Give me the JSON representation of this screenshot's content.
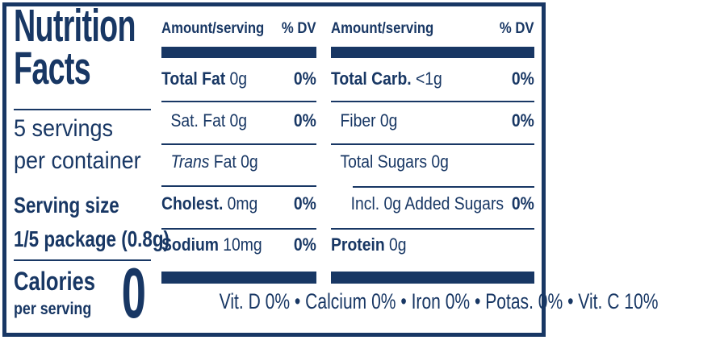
{
  "colors": {
    "navy": "#183764",
    "background": "#ffffff"
  },
  "left_panel": {
    "title_line1": "Nutrition",
    "title_line2": "Facts",
    "servings_line1": "5 servings",
    "servings_line2": "per container",
    "serving_size_label": "Serving size",
    "serving_size_value": "1/5 package (0.8g)",
    "calories_label": "Calories",
    "calories_sublabel": "per serving",
    "calories_value": "0"
  },
  "columns": [
    {
      "header_amount": "Amount/serving",
      "header_dv": "% DV",
      "rows": [
        {
          "name": "Total Fat",
          "style": "bold",
          "value": "0g",
          "dv": "0%",
          "indent": 0
        },
        {
          "name": "Sat. Fat",
          "style": "regular",
          "value": "0g",
          "dv": "0%",
          "indent": 1
        },
        {
          "name": "Trans",
          "style": "italic",
          "value": "Fat 0g",
          "dv": "",
          "indent": 1
        },
        {
          "name": "Cholest.",
          "style": "bold",
          "value": "0mg",
          "dv": "0%",
          "indent": 0
        },
        {
          "name": "Sodium",
          "style": "bold",
          "value": "10mg",
          "dv": "0%",
          "indent": 0
        }
      ]
    },
    {
      "header_amount": "Amount/serving",
      "header_dv": "% DV",
      "rows": [
        {
          "name": "Total Carb.",
          "style": "bold",
          "value": "<1g",
          "dv": "0%",
          "indent": 0
        },
        {
          "name": "Fiber",
          "style": "regular",
          "value": "0g",
          "dv": "0%",
          "indent": 1
        },
        {
          "name": "Total Sugars",
          "style": "regular",
          "value": "0g",
          "dv": "",
          "indent": 1
        },
        {
          "name": "Incl. 0g Added Sugars",
          "style": "regular",
          "value": "",
          "dv": "0%",
          "indent": 2
        },
        {
          "name": "Protein",
          "style": "bold",
          "value": "0g",
          "dv": "",
          "indent": 0
        }
      ]
    }
  ],
  "footer": {
    "micronutrients": "Vit. D 0% • Calcium 0% • Iron 0% • Potas. 0% • Vit. C 10%"
  }
}
